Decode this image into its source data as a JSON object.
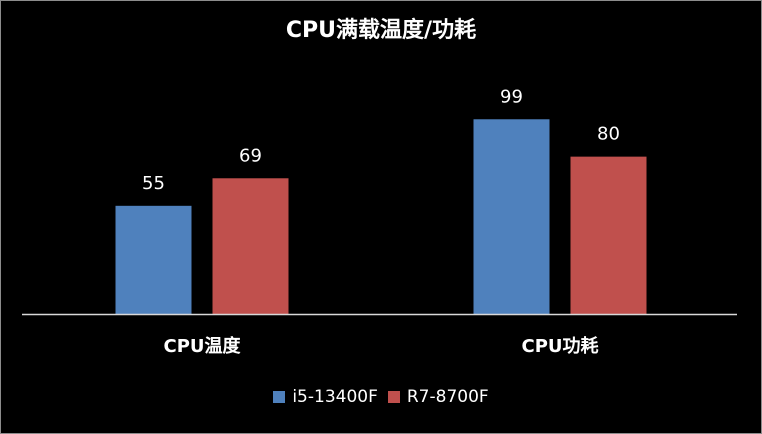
{
  "chart_data": {
    "type": "bar",
    "title": "CPU满载温度/功耗",
    "categories": [
      "CPU温度",
      "CPU功耗"
    ],
    "series": [
      {
        "name": "i5-13400F",
        "values": [
          55,
          99
        ],
        "color": "#4f81bd"
      },
      {
        "name": "R7-8700F",
        "values": [
          69,
          80
        ],
        "color": "#c0504d"
      }
    ],
    "ylim": [
      0,
      120
    ],
    "grid": false,
    "legend_position": "bottom",
    "data_labels": true,
    "background": "#000000",
    "text_color": "#ffffff",
    "axis_color": "#d9d9d9"
  }
}
